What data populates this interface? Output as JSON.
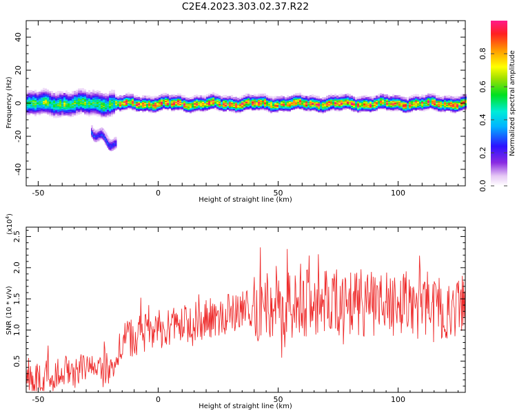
{
  "figure_title": "C2E4.2023.303.02.37.R22",
  "colors": {
    "snr_line": "#ee2a2a",
    "axes": "#000000",
    "ridge_core": "#ff2020"
  },
  "chart_data": [
    {
      "type": "heatmap",
      "xlabel": "Height of straight line (km)",
      "ylabel": "Frequency (Hz)",
      "xlim": [
        -55,
        128
      ],
      "ylim": [
        -50,
        50
      ],
      "x_ticks": [
        "-50",
        "0",
        "50",
        "100"
      ],
      "y_ticks": [
        "40",
        "20",
        "0",
        "-20",
        "-40"
      ],
      "colorbar": {
        "label": "Normalized spectral amplitude",
        "range": [
          0.0,
          1.0
        ],
        "ticks": [
          "0.0",
          "0.2",
          "0.4",
          "0.6",
          "0.8"
        ]
      },
      "ridge_frequency_hz": 0,
      "secondary_feature": {
        "x_range_km": [
          -28,
          -18
        ],
        "freq_range_hz": [
          -28,
          -14
        ]
      }
    },
    {
      "type": "line",
      "xlabel": "Height of straight line (km)",
      "ylabel": "SNR (10 * v/v)",
      "y_scale_label": "(x10",
      "y_scale_exponent": "4",
      "y_multiplier": 10000,
      "xlim": [
        -55,
        128
      ],
      "ylim": [
        0.0,
        2.65
      ],
      "x_ticks": [
        "-50",
        "0",
        "50",
        "100"
      ],
      "y_ticks": [
        "0.5",
        "1.0",
        "1.5",
        "2.0",
        "2.5"
      ],
      "trend": {
        "x": [
          -55,
          -40,
          -30,
          -20,
          -15,
          -10,
          0,
          10,
          20,
          30,
          40,
          50,
          60,
          70,
          80,
          90,
          100,
          110,
          120,
          128
        ],
        "y": [
          0.22,
          0.3,
          0.38,
          0.35,
          0.85,
          0.9,
          1.0,
          1.08,
          1.17,
          1.26,
          1.36,
          1.4,
          1.42,
          1.43,
          1.43,
          1.44,
          1.42,
          1.4,
          1.38,
          1.36
        ]
      }
    }
  ]
}
